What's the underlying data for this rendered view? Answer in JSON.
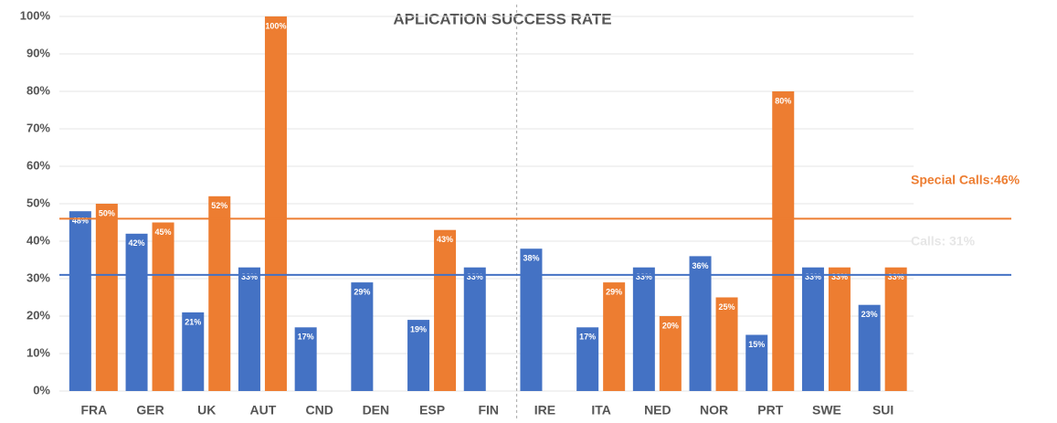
{
  "chart_data": {
    "type": "bar",
    "title": "APLICATION SUCCESS RATE",
    "categories": [
      "FRA",
      "GER",
      "UK",
      "AUT",
      "CND",
      "DEN",
      "ESP",
      "FIN",
      "IRE",
      "ITA",
      "NED",
      "NOR",
      "PRT",
      "SWE",
      "SUI"
    ],
    "series": [
      {
        "color": "#4472c4",
        "values": [
          48,
          42,
          21,
          33,
          17,
          29,
          19,
          33,
          38,
          17,
          33,
          36,
          15,
          33,
          23
        ],
        "value_labels": [
          "48%",
          "42%",
          "21%",
          "33%",
          "17%",
          "29%",
          "19%",
          "33%",
          "38%",
          "17%",
          "33%",
          "36%",
          "15%",
          "33%",
          "23%"
        ]
      },
      {
        "color": "#ed7d31",
        "values": [
          50,
          45,
          52,
          100,
          null,
          null,
          43,
          null,
          null,
          29,
          20,
          25,
          80,
          33,
          33
        ],
        "value_labels": [
          "50%",
          "45%",
          "52%",
          "100%",
          null,
          null,
          "43%",
          null,
          null,
          "29%",
          "20%",
          "25%",
          "80%",
          "33%",
          "33%"
        ]
      }
    ],
    "ylim": [
      0,
      100
    ],
    "yticks": [
      {
        "value": 0,
        "label": "0%"
      },
      {
        "value": 10,
        "label": "10%"
      },
      {
        "value": 20,
        "label": "20%"
      },
      {
        "value": 30,
        "label": "30%"
      },
      {
        "value": 40,
        "label": "40%"
      },
      {
        "value": 50,
        "label": "50%"
      },
      {
        "value": 60,
        "label": "60%"
      },
      {
        "value": 70,
        "label": "70%"
      },
      {
        "value": 80,
        "label": "80%"
      },
      {
        "value": 90,
        "label": "90%"
      },
      {
        "value": 100,
        "label": "100%"
      }
    ],
    "grid": true,
    "reference_lines": [
      {
        "label": "Special Calls:46%",
        "value": 46,
        "color": "#ed7d31"
      },
      {
        "label": "Calls: 31%",
        "value": 31,
        "color": "#4472c4"
      }
    ]
  }
}
